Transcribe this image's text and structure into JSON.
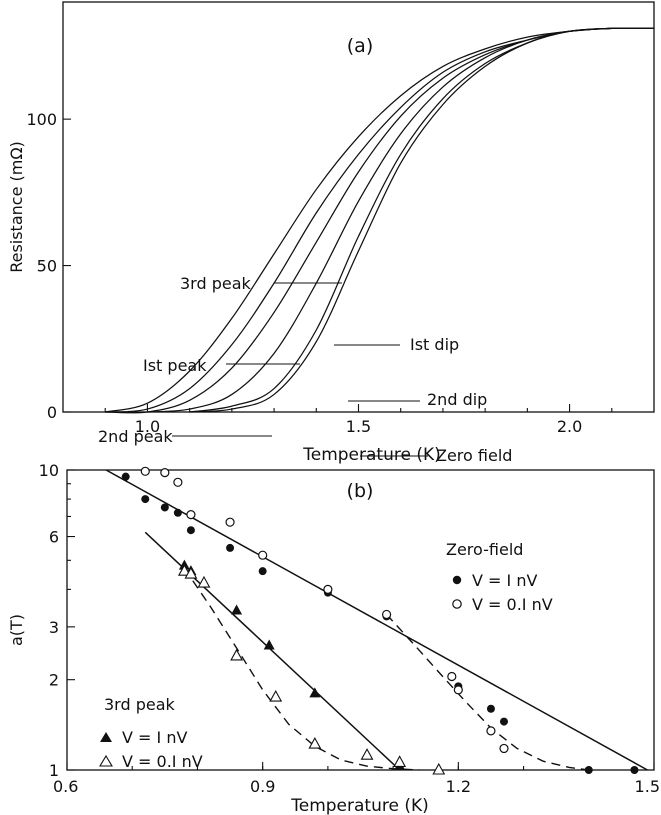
{
  "chart_data": [
    {
      "panel": "(a)",
      "type": "line",
      "xlabel": "Temperature (K)",
      "ylabel": "Resistance (mΩ)",
      "xlim": [
        0.8,
        2.2
      ],
      "ylim": [
        0,
        140
      ],
      "xticks": [
        1.0,
        1.5,
        2.0
      ],
      "xtick_labels": [
        "1.0",
        "1.5",
        "2.0"
      ],
      "yticks": [
        0,
        50,
        100
      ],
      "ytick_labels": [
        "0",
        "50",
        "100"
      ],
      "series": [
        {
          "name": "3rd peak",
          "x": [
            0.9,
            1.0,
            1.1,
            1.2,
            1.3,
            1.4,
            1.5,
            1.6,
            1.7,
            1.8,
            1.9,
            2.0,
            2.1,
            2.2
          ],
          "y": [
            0,
            3,
            14,
            32,
            54,
            76,
            94,
            108,
            118,
            124,
            128,
            130,
            131,
            131
          ]
        },
        {
          "name": "1st peak",
          "x": [
            0.9,
            1.0,
            1.1,
            1.2,
            1.3,
            1.4,
            1.5,
            1.6,
            1.7,
            1.8,
            1.9,
            2.0,
            2.1,
            2.2
          ],
          "y": [
            0,
            1,
            8,
            23,
            44,
            68,
            88,
            104,
            116,
            123,
            127,
            130,
            131,
            131
          ]
        },
        {
          "name": "2nd peak",
          "x": [
            0.9,
            1.0,
            1.1,
            1.2,
            1.3,
            1.4,
            1.5,
            1.6,
            1.7,
            1.8,
            1.9,
            2.0,
            2.1,
            2.2
          ],
          "y": [
            0,
            0,
            4,
            15,
            34,
            58,
            82,
            101,
            114,
            122,
            127,
            130,
            131,
            131
          ]
        },
        {
          "name": "1st dip",
          "x": [
            1.0,
            1.1,
            1.2,
            1.3,
            1.4,
            1.5,
            1.6,
            1.7,
            1.8,
            1.9,
            2.0,
            2.1,
            2.2
          ],
          "y": [
            0,
            1,
            6,
            20,
            44,
            72,
            95,
            111,
            121,
            127,
            130,
            131,
            131
          ]
        },
        {
          "name": "2nd dip",
          "x": [
            1.1,
            1.2,
            1.3,
            1.4,
            1.5,
            1.6,
            1.7,
            1.8,
            1.9,
            2.0,
            2.1,
            2.2
          ],
          "y": [
            0,
            2,
            8,
            28,
            60,
            88,
            107,
            119,
            126,
            130,
            131,
            131
          ]
        },
        {
          "name": "Zero field",
          "x": [
            1.1,
            1.2,
            1.3,
            1.4,
            1.5,
            1.6,
            1.7,
            1.8,
            1.9,
            2.0,
            2.1,
            2.2
          ],
          "y": [
            0,
            1,
            6,
            24,
            55,
            85,
            105,
            118,
            126,
            130,
            131,
            131
          ]
        }
      ],
      "labels": [
        "3rd peak",
        "Ist peak",
        "2nd peak",
        "Ist dip",
        "2nd dip",
        "Zero field"
      ]
    },
    {
      "panel": "(b)",
      "type": "scatter",
      "xlabel": "Temperature (K)",
      "ylabel": "a(T)",
      "xlim": [
        0.6,
        1.5
      ],
      "ylim": [
        1,
        10
      ],
      "yscale": "log",
      "xticks": [
        0.6,
        0.9,
        1.2,
        1.5
      ],
      "xtick_labels": [
        "0.6",
        "0.9",
        "1.2",
        "1.5"
      ],
      "yticks": [
        1,
        2,
        3,
        6,
        10
      ],
      "ytick_labels": [
        "1",
        "2",
        "3",
        "6",
        "10"
      ],
      "legend_groups": [
        {
          "title": "Zero-field",
          "entries": [
            "V = I nV",
            "V = 0.I nV"
          ]
        },
        {
          "title": "3rd peak",
          "entries": [
            "V = I nV",
            "V = 0.I nV"
          ]
        }
      ],
      "series": [
        {
          "name": "Zero-field V = 1 nV",
          "marker": "filled-circle",
          "x": [
            0.69,
            0.72,
            0.75,
            0.77,
            0.79,
            0.85,
            0.9,
            1.0,
            1.09,
            1.2,
            1.25,
            1.27,
            1.4,
            1.47
          ],
          "y": [
            9.5,
            8.0,
            7.5,
            7.2,
            6.3,
            5.5,
            4.6,
            3.9,
            3.25,
            1.9,
            1.6,
            1.45,
            1.0,
            1.0
          ]
        },
        {
          "name": "Zero-field V = 0.1 nV",
          "marker": "open-circle",
          "x": [
            0.72,
            0.75,
            0.77,
            0.79,
            0.85,
            0.9,
            1.0,
            1.09,
            1.19,
            1.2,
            1.25,
            1.27
          ],
          "y": [
            9.9,
            9.8,
            9.1,
            7.1,
            6.7,
            5.2,
            4.0,
            3.3,
            2.05,
            1.85,
            1.35,
            1.18
          ]
        },
        {
          "name": "3rd peak V = 1 nV",
          "marker": "filled-triangle",
          "x": [
            0.78,
            0.79,
            0.86,
            0.91,
            0.98,
            1.11
          ],
          "y": [
            4.8,
            4.6,
            3.4,
            2.6,
            1.8,
            1.03
          ]
        },
        {
          "name": "3rd peak V = 0.1 nV",
          "marker": "open-triangle",
          "x": [
            0.78,
            0.79,
            0.81,
            0.86,
            0.92,
            0.98,
            1.06,
            1.11,
            1.17
          ],
          "y": [
            4.6,
            4.5,
            4.2,
            2.4,
            1.75,
            1.22,
            1.12,
            1.06,
            1.0
          ]
        }
      ],
      "fit_lines": [
        {
          "style": "solid",
          "x": [
            0.66,
            1.49
          ],
          "y": [
            10,
            1.0
          ]
        },
        {
          "style": "solid",
          "x": [
            0.72,
            1.11
          ],
          "y": [
            6.2,
            1.0
          ]
        },
        {
          "style": "dashed",
          "x": [
            0.78,
            0.82,
            0.86,
            0.9,
            0.94,
            0.98,
            1.02,
            1.06,
            1.1,
            1.14
          ],
          "y": [
            4.7,
            3.5,
            2.55,
            1.85,
            1.42,
            1.2,
            1.08,
            1.03,
            1.01,
            1.0
          ]
        },
        {
          "style": "dashed",
          "x": [
            1.09,
            1.13,
            1.17,
            1.21,
            1.25,
            1.29,
            1.33,
            1.37,
            1.4
          ],
          "y": [
            3.3,
            2.65,
            2.12,
            1.7,
            1.38,
            1.18,
            1.07,
            1.02,
            1.0
          ]
        }
      ]
    }
  ]
}
